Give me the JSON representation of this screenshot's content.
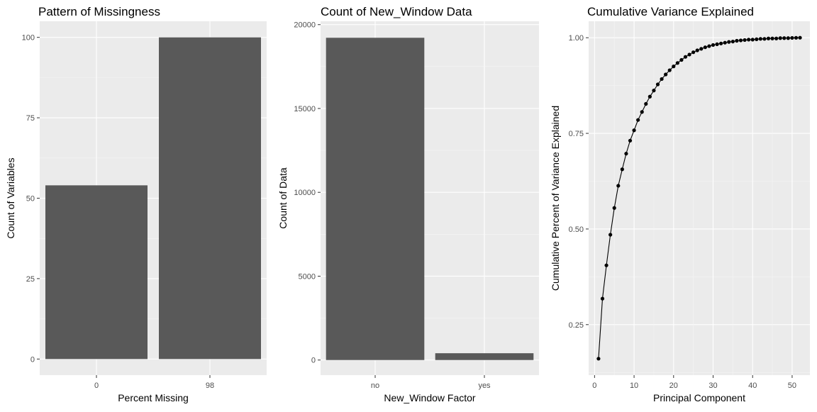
{
  "chart_data": [
    {
      "type": "bar",
      "title": "Pattern of Missingness",
      "xlabel": "Percent Missing",
      "ylabel": "Count of Variables",
      "categories": [
        "0",
        "98"
      ],
      "values": [
        54,
        100
      ],
      "ylim": [
        -5,
        105
      ],
      "yticks": [
        0,
        25,
        50,
        75,
        100
      ],
      "ytick_labels": [
        "0",
        "25",
        "50",
        "75",
        "100"
      ],
      "bar_color": "#595959",
      "panel_color": "#ebebeb",
      "grid": true
    },
    {
      "type": "bar",
      "title": "Count of New_Window Data",
      "xlabel": "New_Window Factor",
      "ylabel": "Count of Data",
      "categories": [
        "no",
        "yes"
      ],
      "values": [
        19216,
        406
      ],
      "ylim": [
        -900,
        20200
      ],
      "yticks": [
        0,
        5000,
        10000,
        15000,
        20000
      ],
      "ytick_labels": [
        "0",
        "5000",
        "10000",
        "15000",
        "20000"
      ],
      "bar_color": "#595959",
      "panel_color": "#ebebeb",
      "grid": true
    },
    {
      "type": "line",
      "title": "Cumulative Variance Explained",
      "xlabel": "Principal Component",
      "ylabel": "Cumulative Percent of Variance Explained",
      "x": [
        1,
        2,
        3,
        4,
        5,
        6,
        7,
        8,
        9,
        10,
        11,
        12,
        13,
        14,
        15,
        16,
        17,
        18,
        19,
        20,
        21,
        22,
        23,
        24,
        25,
        26,
        27,
        28,
        29,
        30,
        31,
        32,
        33,
        34,
        35,
        36,
        37,
        38,
        39,
        40,
        41,
        42,
        43,
        44,
        45,
        46,
        47,
        48,
        49,
        50,
        51,
        52
      ],
      "y": [
        0.161,
        0.318,
        0.405,
        0.485,
        0.555,
        0.613,
        0.656,
        0.697,
        0.731,
        0.758,
        0.785,
        0.806,
        0.827,
        0.846,
        0.862,
        0.878,
        0.892,
        0.904,
        0.915,
        0.925,
        0.934,
        0.942,
        0.95,
        0.956,
        0.962,
        0.967,
        0.971,
        0.975,
        0.978,
        0.981,
        0.983,
        0.985,
        0.987,
        0.989,
        0.99,
        0.992,
        0.993,
        0.994,
        0.995,
        0.995,
        0.996,
        0.997,
        0.997,
        0.998,
        0.998,
        0.998,
        0.999,
        0.999,
        0.999,
        0.9995,
        0.9998,
        1.0
      ],
      "xlim": [
        -1.5,
        54.5
      ],
      "ylim": [
        0.118,
        1.043
      ],
      "xticks": [
        0,
        10,
        20,
        30,
        40,
        50
      ],
      "xtick_labels": [
        "0",
        "10",
        "20",
        "30",
        "40",
        "50"
      ],
      "yticks": [
        0.25,
        0.5,
        0.75,
        1.0
      ],
      "ytick_labels": [
        "0.25",
        "0.50",
        "0.75",
        "1.00"
      ],
      "line_color": "#000000",
      "point_color": "#000000",
      "panel_color": "#ebebeb",
      "grid": true
    }
  ]
}
